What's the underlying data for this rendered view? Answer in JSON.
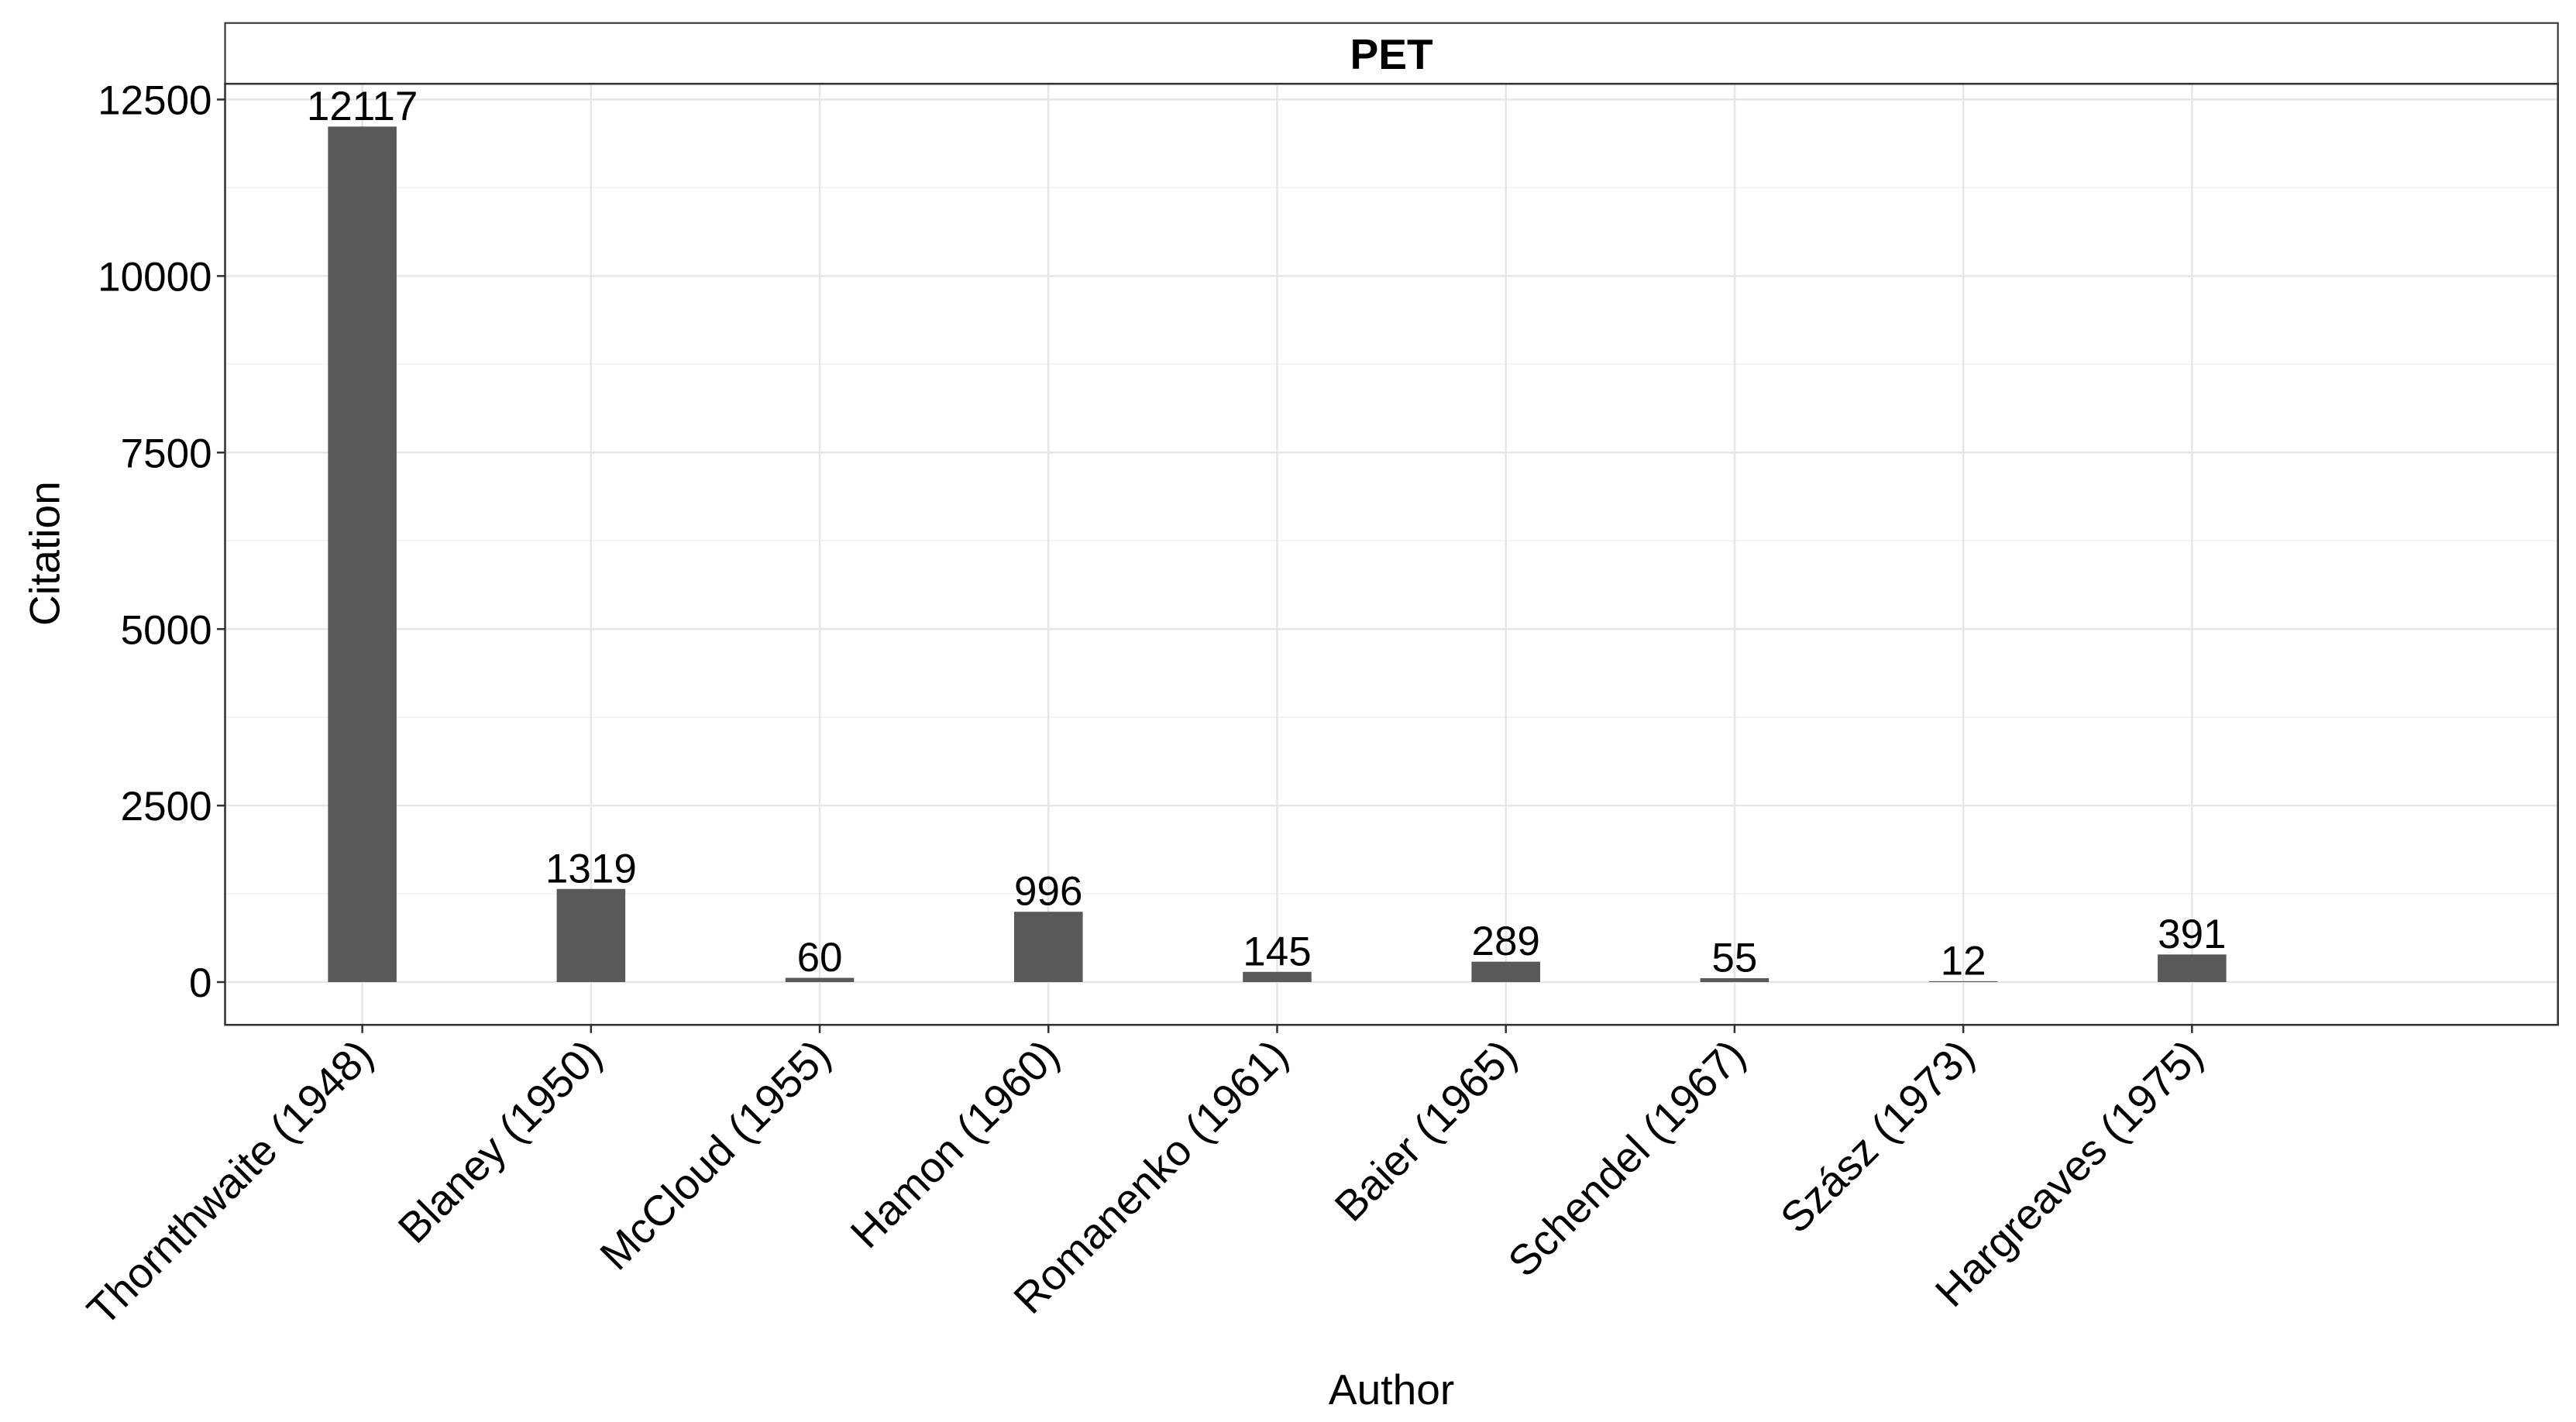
{
  "chart_data": {
    "type": "bar",
    "title": "PET",
    "x_label": "Author",
    "y_label": "Citation",
    "categories": [
      "Thornthwaite (1948)",
      "Blaney (1950)",
      "McCloud (1955)",
      "Hamon (1960)",
      "Romanenko (1961)",
      "Baier (1965)",
      "Schendel (1967)",
      "Szász (1973)",
      "Hargreaves (1975)"
    ],
    "values": [
      12117,
      1319,
      60,
      996,
      145,
      289,
      55,
      12,
      391
    ],
    "color": "#595959",
    "ylim": [
      -605.85,
      12722.85
    ],
    "yticks": [
      0,
      2500,
      5000,
      7500,
      10000,
      12500
    ],
    "grid": true
  }
}
